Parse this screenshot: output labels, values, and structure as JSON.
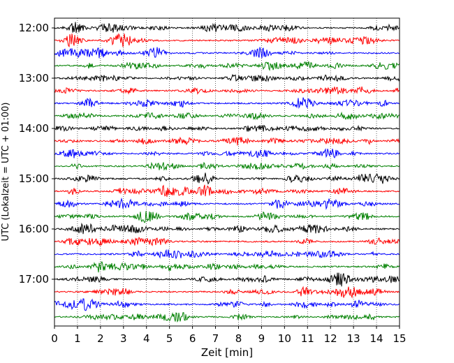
{
  "chart_data": {
    "type": "line",
    "title": "",
    "xlabel": "Zeit  [min]",
    "ylabel": "UTC (Lokalzeit = UTC + 01:00)",
    "xlim": [
      0,
      15
    ],
    "x_ticks": [
      0,
      1,
      2,
      3,
      4,
      5,
      6,
      7,
      8,
      9,
      10,
      11,
      12,
      13,
      14,
      15
    ],
    "x_grid": true,
    "y_ticks": [
      "12:00",
      "13:00",
      "14:00",
      "15:00",
      "16:00",
      "17:00"
    ],
    "trace_interval_min": 15,
    "traces_start": "12:00",
    "trace_count": 24,
    "trace_colors": [
      "#000000",
      "#ff0000",
      "#0000ff",
      "#008000"
    ],
    "series": [
      {
        "start": "12:00",
        "color": "#000000"
      },
      {
        "start": "12:15",
        "color": "#ff0000"
      },
      {
        "start": "12:30",
        "color": "#0000ff"
      },
      {
        "start": "12:45",
        "color": "#008000"
      },
      {
        "start": "13:00",
        "color": "#000000"
      },
      {
        "start": "13:15",
        "color": "#ff0000"
      },
      {
        "start": "13:30",
        "color": "#0000ff"
      },
      {
        "start": "13:45",
        "color": "#008000"
      },
      {
        "start": "14:00",
        "color": "#000000"
      },
      {
        "start": "14:15",
        "color": "#ff0000"
      },
      {
        "start": "14:30",
        "color": "#0000ff"
      },
      {
        "start": "14:45",
        "color": "#008000"
      },
      {
        "start": "15:00",
        "color": "#000000"
      },
      {
        "start": "15:15",
        "color": "#ff0000"
      },
      {
        "start": "15:30",
        "color": "#0000ff"
      },
      {
        "start": "15:45",
        "color": "#008000"
      },
      {
        "start": "16:00",
        "color": "#000000"
      },
      {
        "start": "16:15",
        "color": "#ff0000"
      },
      {
        "start": "16:30",
        "color": "#0000ff"
      },
      {
        "start": "16:45",
        "color": "#008000"
      },
      {
        "start": "17:00",
        "color": "#000000"
      },
      {
        "start": "17:15",
        "color": "#ff0000"
      },
      {
        "start": "17:30",
        "color": "#0000ff"
      },
      {
        "start": "17:45",
        "color": "#008000"
      }
    ]
  }
}
